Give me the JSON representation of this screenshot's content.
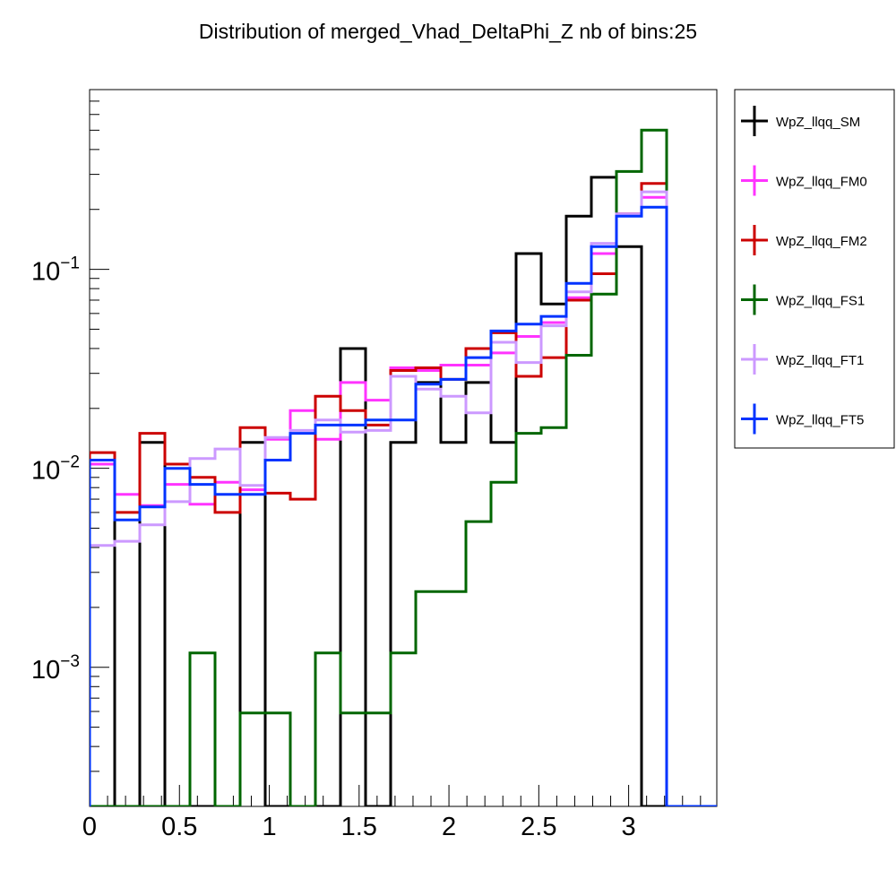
{
  "chart_data": {
    "type": "histogram-step",
    "title": "Distribution of merged_Vhad_DeltaPhi_Z nb of bins:25",
    "xlabel": "",
    "ylabel": "",
    "bin_edges": [
      0,
      0.1396,
      0.2793,
      0.4189,
      0.5585,
      0.6981,
      0.8378,
      0.9774,
      1.117,
      1.2566,
      1.3963,
      1.5359,
      1.6755,
      1.8151,
      1.9548,
      2.0944,
      2.234,
      2.3736,
      2.5133,
      2.6529,
      2.7925,
      2.9322,
      3.0718,
      3.2114,
      3.351,
      3.4907
    ],
    "xlim": [
      0,
      3.4907
    ],
    "ylim": [
      0.0002,
      0.8
    ],
    "yscale": "log",
    "xticks": [
      "0",
      "0.5",
      "1",
      "1.5",
      "2",
      "2.5",
      "3"
    ],
    "yticks": [
      {
        "value": 0.1,
        "base": "10",
        "exp": "−1"
      },
      {
        "value": 0.01,
        "base": "10",
        "exp": "−2"
      },
      {
        "value": 0.001,
        "base": "10",
        "exp": "−3"
      }
    ],
    "legend_position": "right, outside plot",
    "series": [
      {
        "name": "WpZ_llqq_SM",
        "color": "#000000",
        "values": [
          0.0105,
          0,
          0.0135,
          0,
          0,
          0,
          0.0135,
          0,
          0,
          0,
          0.04,
          0,
          0.0135,
          0.027,
          0.0135,
          0.027,
          0.0135,
          0.12,
          0.067,
          0.185,
          0.29,
          0.13,
          0,
          0,
          0
        ]
      },
      {
        "name": "WpZ_llqq_FM0",
        "color": "#ff33ff",
        "values": [
          0.0105,
          0.0074,
          0.0065,
          0.0083,
          0.0066,
          0.0085,
          0.0078,
          0.014,
          0.0195,
          0.014,
          0.027,
          0.022,
          0.032,
          0.031,
          0.033,
          0.033,
          0.038,
          0.046,
          0.054,
          0.072,
          0.12,
          0.19,
          0.23,
          0,
          0
        ]
      },
      {
        "name": "WpZ_llqq_FM2",
        "color": "#cc0000",
        "values": [
          0.012,
          0.006,
          0.015,
          0.0105,
          0.009,
          0.006,
          0.016,
          0.0075,
          0.007,
          0.023,
          0.0195,
          0.0165,
          0.031,
          0.032,
          0.028,
          0.04,
          0.048,
          0.029,
          0.036,
          0.07,
          0.095,
          0.19,
          0.27,
          0,
          0
        ]
      },
      {
        "name": "WpZ_llqq_FS1",
        "color": "#006600",
        "values": [
          0,
          0,
          0,
          0,
          0.00118,
          0,
          0.00059,
          0.00059,
          0,
          0.00118,
          0.00059,
          0.00059,
          0.00118,
          0.0024,
          0.0024,
          0.0054,
          0.0085,
          0.015,
          0.016,
          0.037,
          0.075,
          0.31,
          0.5,
          0,
          0
        ]
      },
      {
        "name": "WpZ_llqq_FT1",
        "color": "#cc99ff",
        "values": [
          0.0041,
          0.0043,
          0.0052,
          0.0068,
          0.0112,
          0.0125,
          0.0082,
          0.0143,
          0.0155,
          0.0175,
          0.0152,
          0.0155,
          0.029,
          0.025,
          0.023,
          0.019,
          0.043,
          0.034,
          0.052,
          0.077,
          0.135,
          0.19,
          0.245,
          0,
          0
        ]
      },
      {
        "name": "WpZ_llqq_FT5",
        "color": "#0033ff",
        "values": [
          0.011,
          0.0055,
          0.0064,
          0.01,
          0.0083,
          0.0074,
          0.0074,
          0.011,
          0.015,
          0.0165,
          0.0165,
          0.0175,
          0.0175,
          0.0265,
          0.028,
          0.036,
          0.049,
          0.053,
          0.058,
          0.085,
          0.13,
          0.185,
          0.205,
          0,
          0
        ]
      }
    ]
  }
}
